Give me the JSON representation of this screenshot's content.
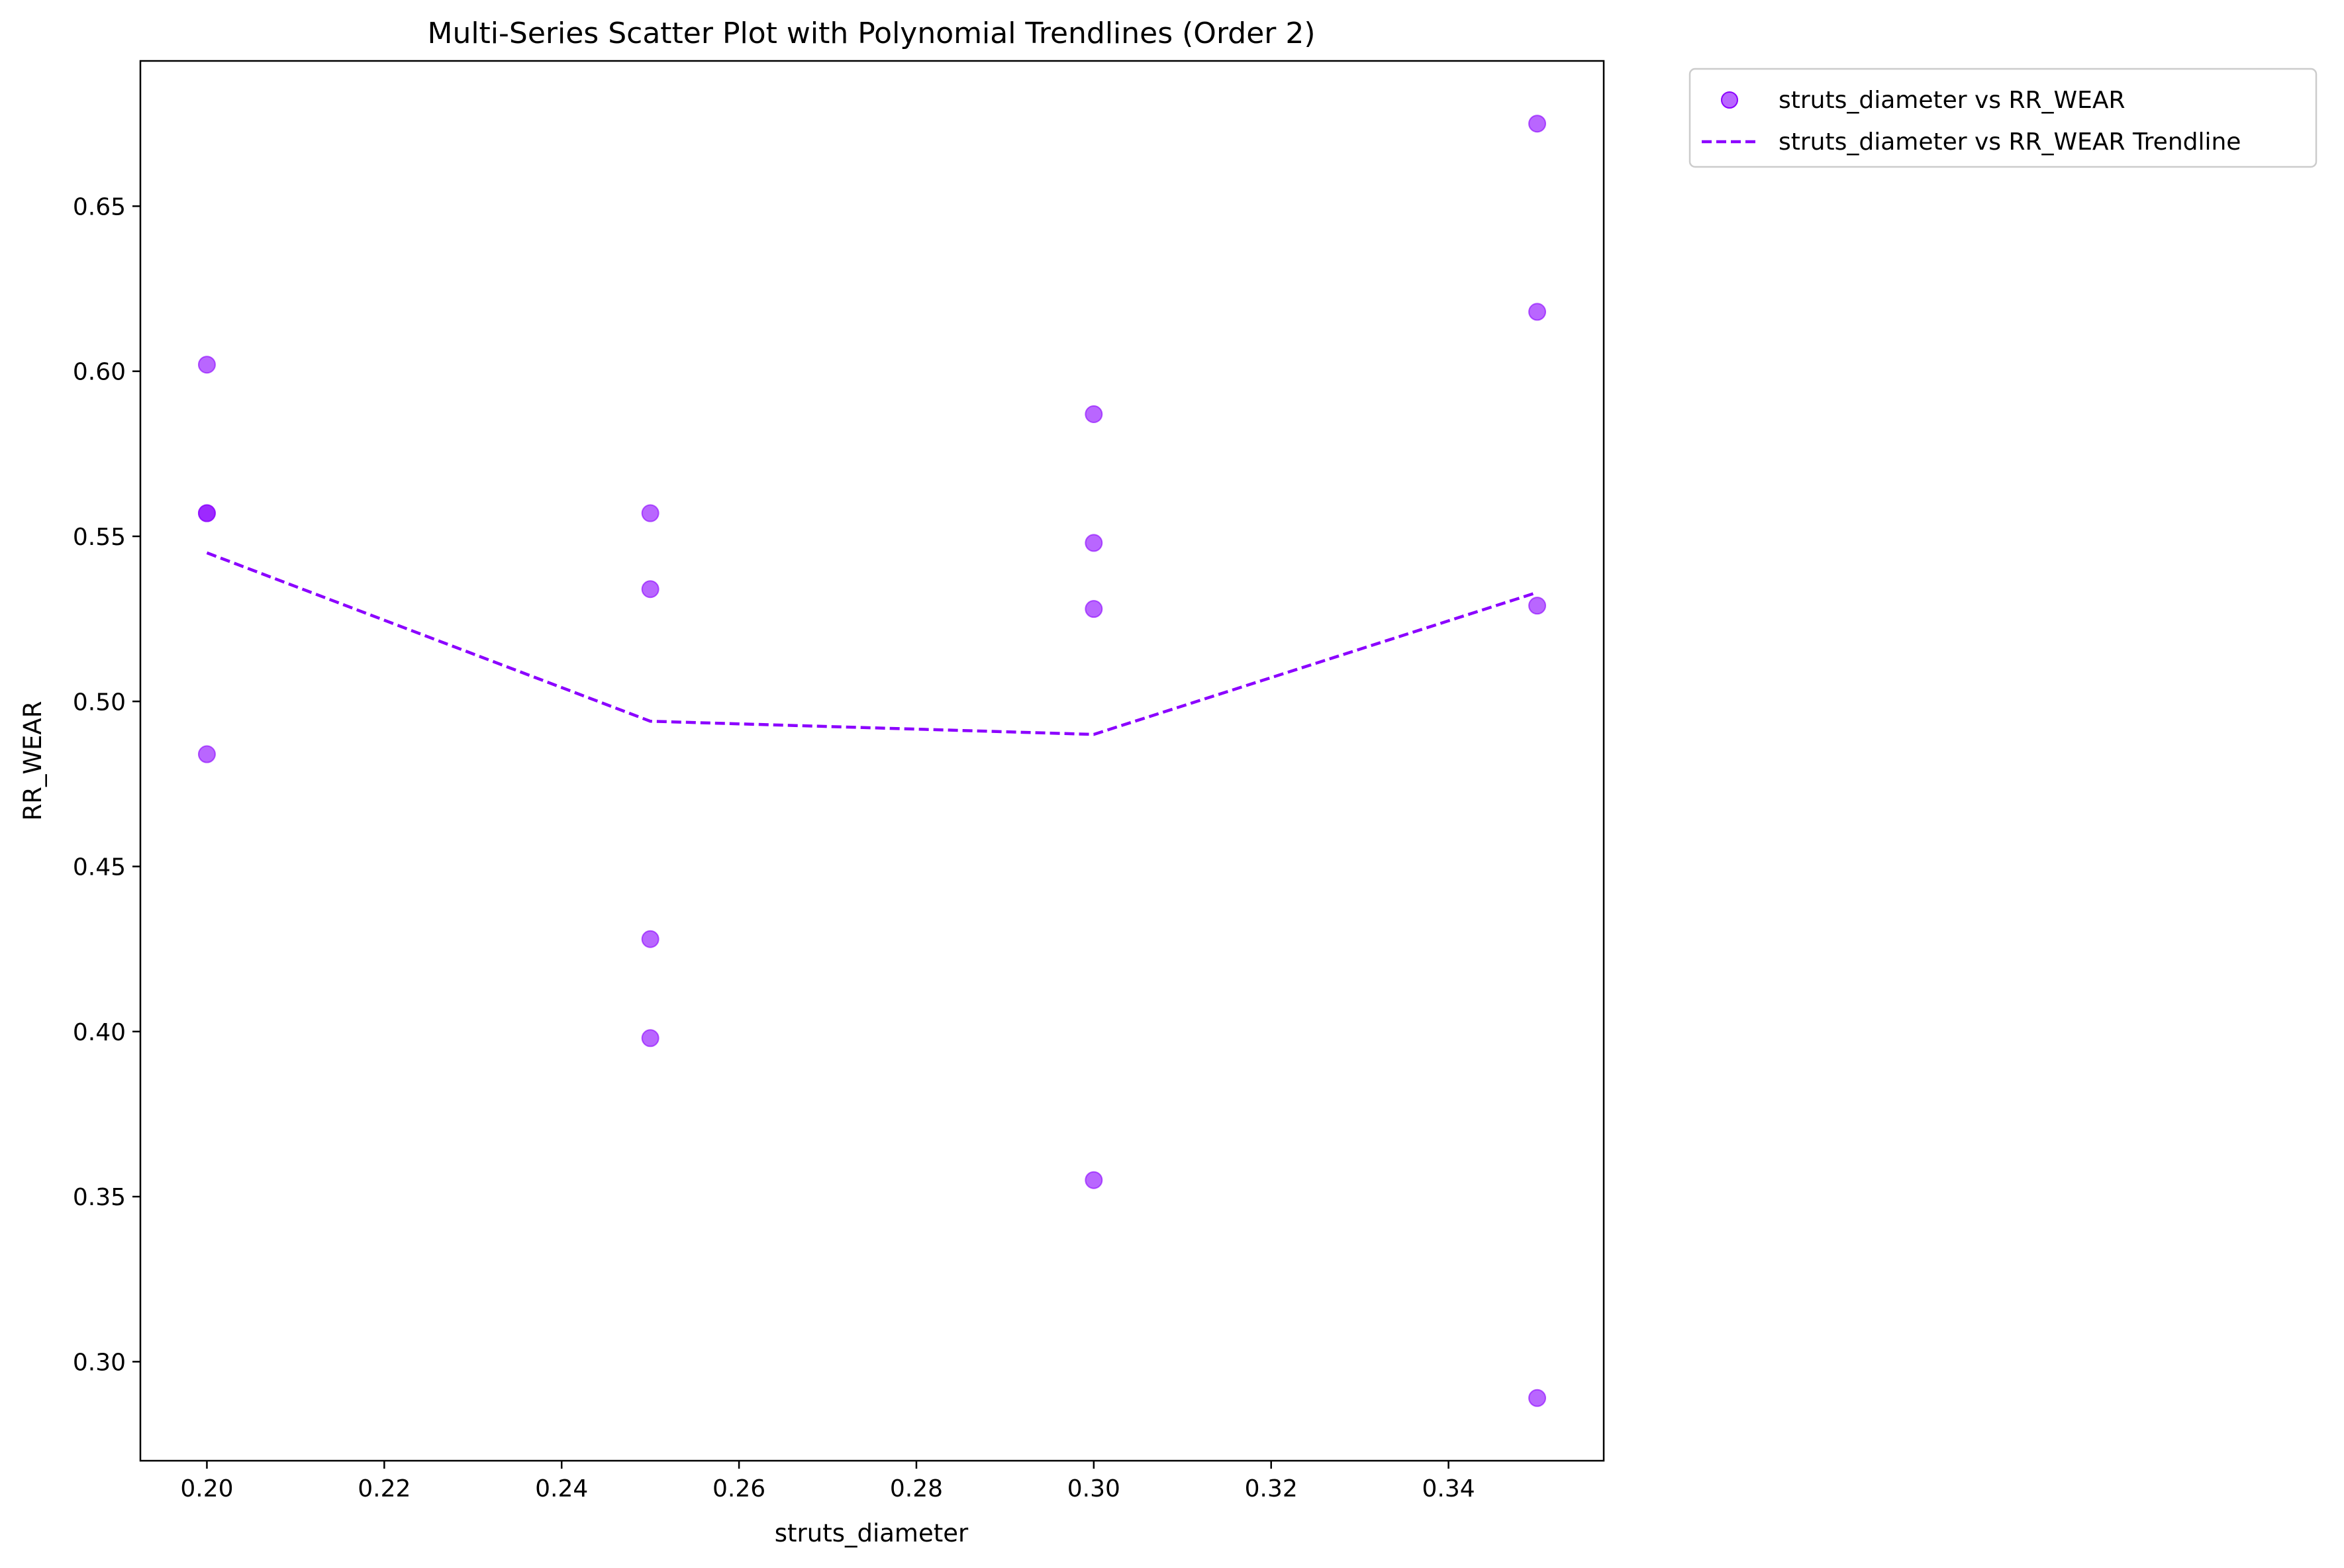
{
  "chart_data": {
    "type": "scatter",
    "title": "Multi-Series Scatter Plot with Polynomial Trendlines (Order 2)",
    "xlabel": "struts_diameter",
    "ylabel": "RR_WEAR",
    "xlim": [
      0.1925,
      0.3575
    ],
    "ylim": [
      0.27,
      0.694
    ],
    "xticks": [
      "0.20",
      "0.22",
      "0.24",
      "0.26",
      "0.28",
      "0.30",
      "0.32",
      "0.34"
    ],
    "xtick_values": [
      0.2,
      0.22,
      0.24,
      0.26,
      0.28,
      0.3,
      0.32,
      0.34
    ],
    "yticks": [
      "0.30",
      "0.35",
      "0.40",
      "0.45",
      "0.50",
      "0.55",
      "0.60",
      "0.65"
    ],
    "ytick_values": [
      0.3,
      0.35,
      0.4,
      0.45,
      0.5,
      0.55,
      0.6,
      0.65
    ],
    "grid": false,
    "legend_position": "outside-top-right",
    "colors": {
      "series": "#8b00ff"
    },
    "series": [
      {
        "name": "struts_diameter vs RR_WEAR",
        "kind": "scatter",
        "points": [
          [
            0.2,
            0.602
          ],
          [
            0.2,
            0.557
          ],
          [
            0.2,
            0.557
          ],
          [
            0.2,
            0.484
          ],
          [
            0.25,
            0.557
          ],
          [
            0.25,
            0.534
          ],
          [
            0.25,
            0.428
          ],
          [
            0.25,
            0.398
          ],
          [
            0.3,
            0.587
          ],
          [
            0.3,
            0.548
          ],
          [
            0.3,
            0.528
          ],
          [
            0.3,
            0.355
          ],
          [
            0.35,
            0.675
          ],
          [
            0.35,
            0.618
          ],
          [
            0.35,
            0.529
          ],
          [
            0.35,
            0.289
          ]
        ]
      },
      {
        "name": "struts_diameter vs RR_WEAR Trendline",
        "kind": "line",
        "style": "dashed",
        "points": [
          [
            0.2,
            0.545
          ],
          [
            0.25,
            0.494
          ],
          [
            0.3,
            0.49
          ],
          [
            0.35,
            0.533
          ]
        ]
      }
    ]
  }
}
